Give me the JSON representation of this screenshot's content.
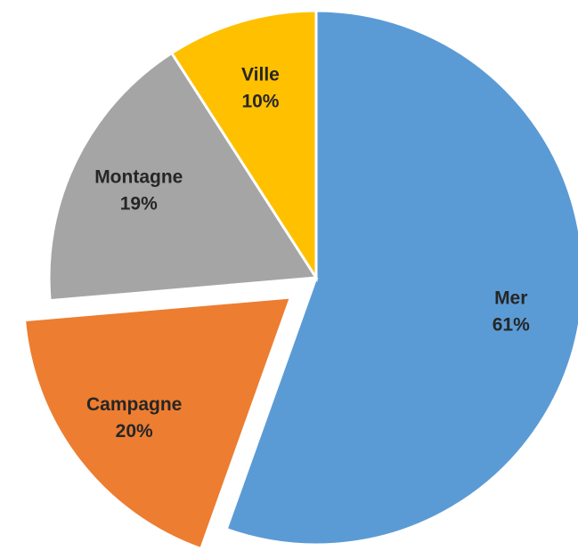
{
  "chart_data": {
    "type": "pie",
    "categories": [
      "Mer",
      "Campagne",
      "Montagne",
      "Ville"
    ],
    "values": [
      61,
      20,
      19,
      10
    ],
    "value_labels": [
      "61%",
      "20%",
      "19%",
      "10%"
    ],
    "colors": [
      "#5b9bd5",
      "#ed7d31",
      "#a5a5a5",
      "#ffc000"
    ],
    "exploded": [
      false,
      true,
      false,
      false
    ]
  }
}
